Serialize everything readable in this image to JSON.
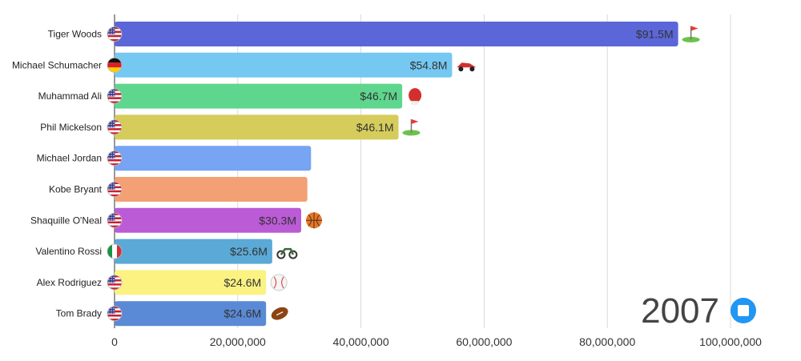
{
  "chart_data": {
    "type": "bar",
    "orientation": "horizontal",
    "year": "2007",
    "xlim": [
      0,
      100000000
    ],
    "xticks": [
      "0",
      "20,000,000",
      "40,000,000",
      "60,000,000",
      "80,000,000",
      "100,000,000"
    ],
    "xtick_values": [
      0,
      20000000,
      40000000,
      60000000,
      80000000,
      100000000
    ],
    "grid": true,
    "bars": [
      {
        "name": "Tiger Woods",
        "value": 91500000,
        "label": "$91.5M",
        "color": "#5b67d8",
        "flag": "usa-flag",
        "sport": "golf-icon"
      },
      {
        "name": "Michael Schumacher",
        "value": 54800000,
        "label": "$54.8M",
        "color": "#74c8f1",
        "flag": "germany-flag",
        "sport": "race-car-icon"
      },
      {
        "name": "Muhammad Ali",
        "value": 46700000,
        "label": "$46.7M",
        "color": "#5fd68e",
        "flag": "usa-flag",
        "sport": "boxing-glove-icon"
      },
      {
        "name": "Phil Mickelson",
        "value": 46100000,
        "label": "$46.1M",
        "color": "#d5cc5c",
        "flag": "usa-flag",
        "sport": "golf-icon"
      },
      {
        "name": "Michael Jordan",
        "value": 31900000,
        "label": "",
        "color": "#77a4f3",
        "flag": "usa-flag",
        "sport": ""
      },
      {
        "name": "Kobe Bryant",
        "value": 31300000,
        "label": "",
        "color": "#f2a074",
        "flag": "usa-flag",
        "sport": ""
      },
      {
        "name": "Shaquille O'Neal",
        "value": 30300000,
        "label": "$30.3M",
        "color": "#bb5bd6",
        "flag": "usa-flag",
        "sport": "basketball-icon"
      },
      {
        "name": "Valentino Rossi",
        "value": 25600000,
        "label": "$25.6M",
        "color": "#5ba9d6",
        "flag": "italy-flag",
        "sport": "motorcycle-icon"
      },
      {
        "name": "Alex Rodriguez",
        "value": 24600000,
        "label": "$24.6M",
        "color": "#fbf282",
        "flag": "usa-flag",
        "sport": "baseball-icon"
      },
      {
        "name": "Tom Brady",
        "value": 24600000,
        "label": "$24.6M",
        "color": "#5a8ad6",
        "flag": "usa-flag",
        "sport": "football-icon"
      }
    ]
  },
  "controls": {
    "stop_button_color": "#2196f3"
  }
}
